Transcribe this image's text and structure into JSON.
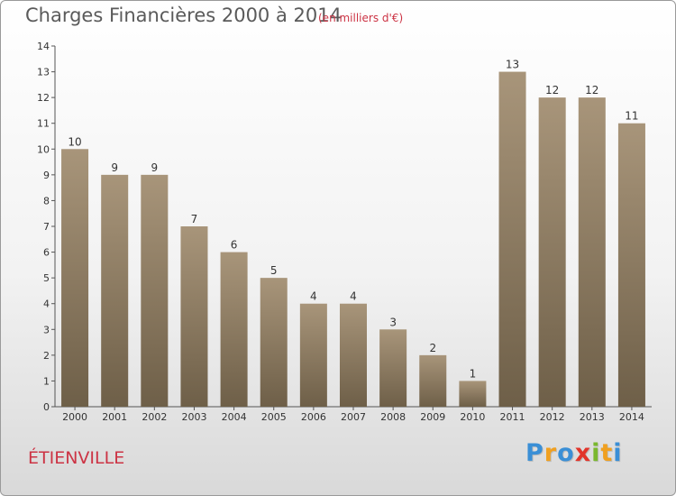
{
  "header": {
    "title": "Charges Financières 2000 à 2014",
    "subtitle": "(en milliers d'€)"
  },
  "footer": {
    "commune": "ÉTIENVILLE",
    "logo": {
      "letters": [
        "P",
        "r",
        "o",
        "x",
        "i",
        "t",
        "i"
      ],
      "colors": [
        "#3a8fd6",
        "#f0a020",
        "#3a8fd6",
        "#e2342a",
        "#7ab82e",
        "#f0a020",
        "#3a8fd6"
      ]
    }
  },
  "colors": {
    "bar_top": "#a8957a",
    "bar_bottom": "#6e5f48",
    "title": "#5a5a5a",
    "accent": "#cc3344"
  },
  "chart_data": {
    "type": "bar",
    "title": "Charges Financières 2000 à 2014",
    "subtitle": "(en milliers d'€)",
    "categories": [
      "2000",
      "2001",
      "2002",
      "2003",
      "2004",
      "2005",
      "2006",
      "2007",
      "2008",
      "2009",
      "2010",
      "2011",
      "2012",
      "2013",
      "2014"
    ],
    "values": [
      10,
      9,
      9,
      7,
      6,
      5,
      4,
      4,
      3,
      2,
      1,
      13,
      12,
      12,
      11
    ],
    "ylim": [
      0,
      14
    ],
    "yticks": [
      0,
      1,
      2,
      3,
      4,
      5,
      6,
      7,
      8,
      9,
      10,
      11,
      12,
      13,
      14
    ],
    "grid": false,
    "xlabel": "",
    "ylabel": ""
  }
}
